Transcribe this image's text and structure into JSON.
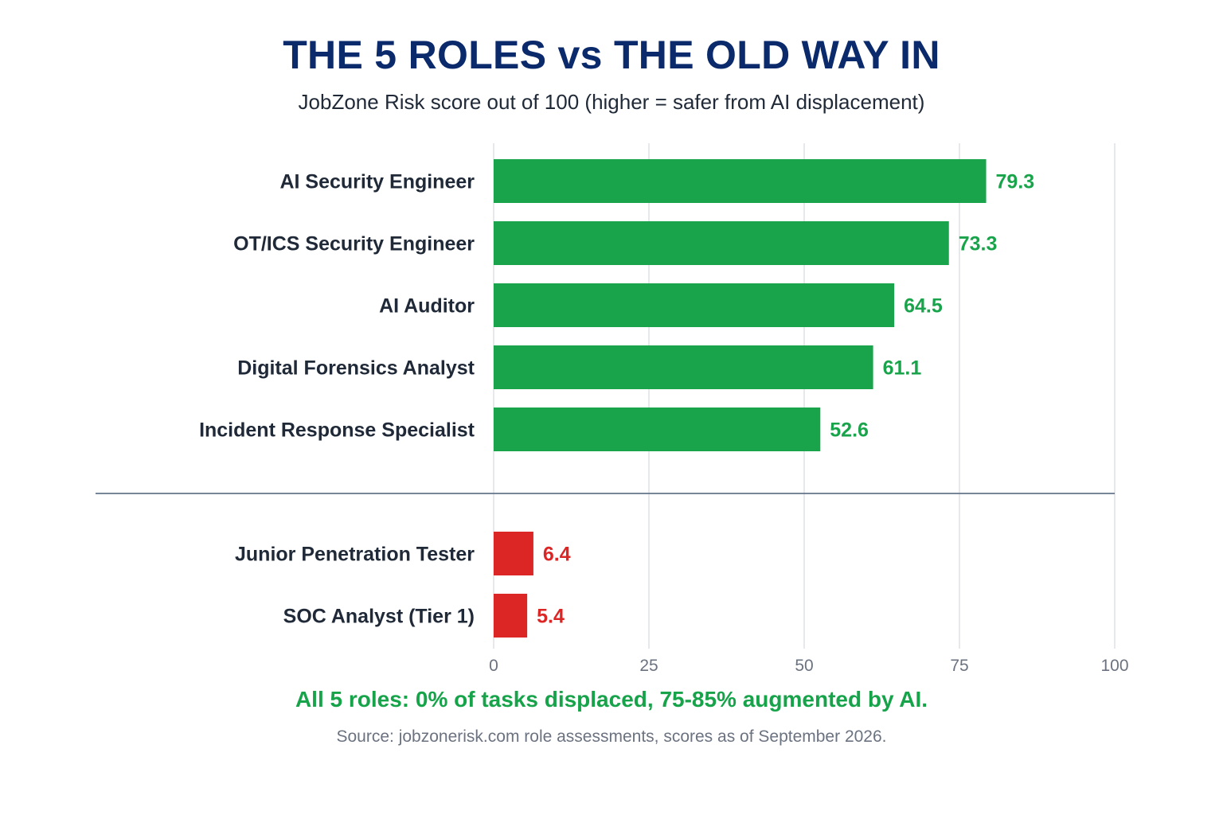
{
  "title": "THE 5 ROLES vs THE OLD WAY IN",
  "subtitle": "JobZone Risk score out of 100 (higher = safer from AI displacement)",
  "footnote": "All 5 roles: 0% of tasks displaced, 75-85% augmented by AI.",
  "source": "Source: jobzonerisk.com role assessments, scores as of September 2026.",
  "colors": {
    "title": "#0b2a6b",
    "new_roles": "#19a44b",
    "old_roles": "#dc2626",
    "grid": "#dde1e6",
    "divider": "#64748b"
  },
  "chart_data": {
    "type": "bar",
    "orientation": "horizontal",
    "title": "THE 5 ROLES vs THE OLD WAY IN",
    "subtitle": "JobZone Risk score out of 100 (higher = safer from AI displacement)",
    "xlim": [
      0,
      100
    ],
    "xticks": [
      0,
      25,
      50,
      75,
      100
    ],
    "grid": true,
    "groups": [
      {
        "color": "#19a44b",
        "categories": [
          "AI Security Engineer",
          "OT/ICS Security Engineer",
          "AI Auditor",
          "Digital Forensics Analyst",
          "Incident Response Specialist"
        ],
        "values": [
          79.3,
          73.3,
          64.5,
          61.1,
          52.6
        ],
        "labels": [
          "79.3",
          "73.3",
          "64.5",
          "61.1",
          "52.6"
        ]
      },
      {
        "color": "#dc2626",
        "categories": [
          "Junior Penetration Tester",
          "SOC Analyst (Tier 1)"
        ],
        "values": [
          6.4,
          5.4
        ],
        "labels": [
          "6.4",
          "5.4"
        ]
      }
    ]
  }
}
